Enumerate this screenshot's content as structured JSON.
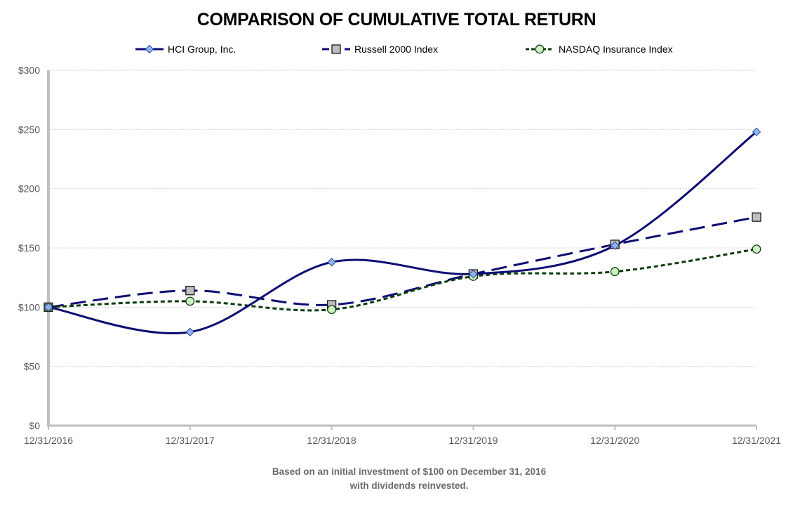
{
  "chart_data": {
    "type": "line",
    "title": "COMPARISON OF CUMULATIVE TOTAL RETURN",
    "x": [
      "12/31/2016",
      "12/31/2017",
      "12/31/2018",
      "12/31/2019",
      "12/31/2020",
      "12/31/2021"
    ],
    "series": [
      {
        "name": "HCI Group, Inc.",
        "values": [
          100,
          79,
          138,
          128,
          152,
          248
        ],
        "color": "#0d0d73",
        "marker": "diamond",
        "marker_fill": "#8fb4f2",
        "dash": "solid"
      },
      {
        "name": "Russell 2000 Index",
        "values": [
          100,
          114,
          102,
          128,
          153,
          176
        ],
        "color": "#0d0d73",
        "marker": "square",
        "marker_fill": "#bfbfbf",
        "dash": "long-dash"
      },
      {
        "name": "NASDAQ Insurance Index",
        "values": [
          100,
          105,
          98,
          126,
          130,
          149
        ],
        "color": "#0a3d0a",
        "marker": "circle",
        "marker_fill": "#c8f2c0",
        "dash": "short-dash"
      }
    ],
    "y_ticks": [
      "$0",
      "$50",
      "$100",
      "$150",
      "$200",
      "$250",
      "$300"
    ],
    "ylim": [
      0,
      300
    ],
    "y_tick_step": 50,
    "grid": true,
    "legend_position": "top",
    "footnote_lines": [
      "Based on an initial investment of $100 on December 31, 2016",
      "with dividends reinvested."
    ]
  }
}
